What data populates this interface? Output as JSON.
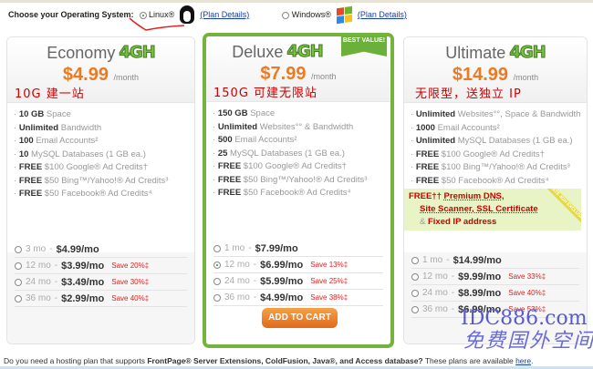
{
  "os_selector": {
    "label": "Choose your Operating System:",
    "options": [
      {
        "label": "Linux®",
        "selected": true,
        "icon": "linux-penguin-icon",
        "details": "(Plan Details)"
      },
      {
        "label": "Windows®",
        "selected": false,
        "icon": "windows-logo-icon",
        "details": "(Plan Details)"
      }
    ]
  },
  "plans": [
    {
      "name": "Economy",
      "badge": "4GH",
      "price": "$4.99",
      "per": "/month",
      "note": "10G 建一站",
      "features": [
        [
          "10 GB",
          "Space"
        ],
        [
          "Unlimited",
          "Bandwidth"
        ],
        [
          "100",
          "Email Accounts²"
        ],
        [
          "10",
          "MySQL Databases (1 GB ea.)"
        ],
        [
          "FREE",
          "$100 Google® Ad Credits†"
        ],
        [
          "FREE",
          "$50 Bing™/Yahoo!® Ad Credits³"
        ],
        [
          "FREE",
          "$50 Facebook® Ad Credits⁴"
        ]
      ],
      "terms": [
        {
          "term": "3 mo",
          "sep": " - ",
          "price": "$4.99/mo",
          "save": ""
        },
        {
          "term": "12 mo",
          "sep": " - ",
          "price": "$3.99/mo",
          "save": "Save 20%‡"
        },
        {
          "term": "24 mo",
          "sep": " - ",
          "price": "$3.49/mo",
          "save": "Save 30%‡"
        },
        {
          "term": "36 mo",
          "sep": " - ",
          "price": "$2.99/mo",
          "save": "Save 40%‡"
        }
      ]
    },
    {
      "name": "Deluxe",
      "badge": "4GH",
      "ribbon": "BEST VALUE!",
      "price": "$7.99",
      "per": "/month",
      "note": "150G 可建无限站",
      "features": [
        [
          "150 GB",
          "Space"
        ],
        [
          "Unlimited",
          "Websites°° & Bandwidth"
        ],
        [
          "500",
          "Email Accounts²"
        ],
        [
          "25",
          "MySQL Databases (1 GB ea.)"
        ],
        [
          "FREE",
          "$100 Google® Ad Credits†"
        ],
        [
          "FREE",
          "$50 Bing™/Yahoo!® Ad Credits³"
        ],
        [
          "FREE",
          "$50 Facebook® Ad Credits⁴"
        ]
      ],
      "terms": [
        {
          "term": "1 mo",
          "sep": " - ",
          "price": "$7.99/mo",
          "save": ""
        },
        {
          "term": "12 mo",
          "sep": " - ",
          "price": "$6.99/mo",
          "save": "Save 13%‡",
          "selected": true
        },
        {
          "term": "24 mo",
          "sep": " - ",
          "price": "$5.99/mo",
          "save": "Save 25%‡"
        },
        {
          "term": "36 mo",
          "sep": " - ",
          "price": "$4.99/mo",
          "save": "Save 38%‡"
        }
      ],
      "cart": "ADD TO CART"
    },
    {
      "name": "Ultimate",
      "badge": "4GH",
      "price": "$14.99",
      "per": "/month",
      "note": "无限型，送独立 IP",
      "features": [
        [
          "Unlimited",
          "Websites°°, Space & Bandwidth"
        ],
        [
          "1000",
          "Email Accounts²"
        ],
        [
          "Unlimited",
          "MySQL Databases (1 GB ea.)"
        ],
        [
          "FREE",
          "$100 Google® Ad Credits†"
        ],
        [
          "FREE",
          "$100 Bing™/Yahoo!® Ad Credits³"
        ],
        [
          "FREE",
          "$50 Facebook® Ad Credits⁴"
        ]
      ],
      "exclusive": {
        "free": "FREE††",
        "l1": "Premium DNS,",
        "l2": "Site Scanner, SSL Certificate",
        "amp": "& ",
        "l3": "Fixed IP address",
        "tag": "ULTIMATE 4GH EXCLUSIVE"
      },
      "terms": [
        {
          "term": "1 mo",
          "sep": " - ",
          "price": "$14.99/mo",
          "save": ""
        },
        {
          "term": "12 mo",
          "sep": " - ",
          "price": "$9.99/mo",
          "save": "Save 33%‡"
        },
        {
          "term": "24 mo",
          "sep": " - ",
          "price": "$8.99/mo",
          "save": "Save 40%‡"
        },
        {
          "term": "36 mo",
          "sep": " - ",
          "price": "$6.99/mo",
          "save": "Save 53%‡"
        }
      ]
    }
  ],
  "footer": {
    "pre": "Do you need a hosting plan that supports ",
    "bold": "FrontPage® Server Extensions, ColdFusion, Java®, and Access database?",
    "post": " These plans are available ",
    "link": "here",
    "end": "."
  },
  "watermark": {
    "line1": "IDC886.com",
    "line2": "免费国外空间"
  },
  "colors": {
    "accent": "#ec7a23",
    "green": "#74b43c",
    "save": "#dd2222"
  }
}
